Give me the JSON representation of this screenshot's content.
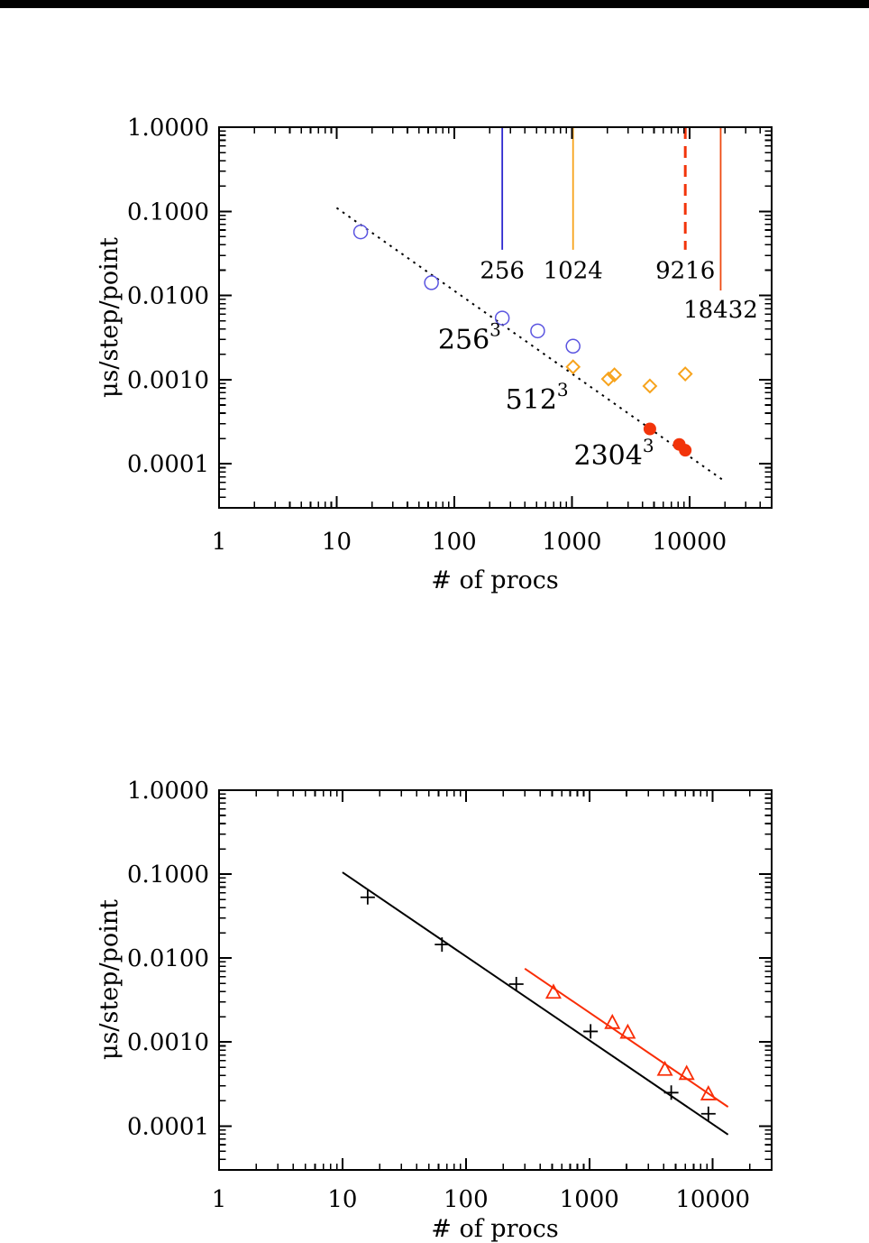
{
  "page": {
    "background": "#ffffff",
    "top_bar_color": "#000000"
  },
  "chart_data": [
    {
      "type": "scatter",
      "scale": "log-log",
      "xlabel": "# of procs",
      "ylabel": "μs/step/point",
      "xlim": [
        1,
        50000
      ],
      "ylim": [
        3e-05,
        1.0
      ],
      "grid": false,
      "legend_position": "none",
      "x_tick_values": [
        1,
        10,
        100,
        1000,
        10000
      ],
      "x_tick_labels": [
        "1",
        "10",
        "100",
        "1000",
        "10000"
      ],
      "y_tick_values": [
        1.0,
        0.1,
        0.01,
        0.001,
        0.0001
      ],
      "y_tick_labels": [
        "1.0000",
        "0.1000",
        "0.0100",
        "0.0010",
        "0.0001"
      ],
      "series": [
        {
          "name": "256^3",
          "marker": "open-circle",
          "color": "#5a54e0",
          "points": [
            [
              16,
              0.057
            ],
            [
              64,
              0.0142
            ],
            [
              256,
              0.0054
            ],
            [
              512,
              0.0038
            ],
            [
              1024,
              0.0025
            ]
          ]
        },
        {
          "name": "512^3",
          "marker": "open-diamond",
          "color": "#f7a31c",
          "points": [
            [
              1024,
              0.00142
            ],
            [
              2048,
              0.00102
            ],
            [
              2304,
              0.00114
            ],
            [
              4608,
              0.00084
            ],
            [
              9216,
              0.00117
            ]
          ]
        },
        {
          "name": "2304^3",
          "marker": "filled-circle",
          "color": "#f2340a",
          "points": [
            [
              4608,
              0.00026
            ],
            [
              8192,
              0.00017
            ],
            [
              9216,
              0.000145
            ]
          ]
        }
      ],
      "lines": [
        {
          "name": "ideal-scaling",
          "style": "dotted",
          "color": "#000000",
          "from": [
            10,
            0.11
          ],
          "to": [
            19000,
            6.5e-05
          ]
        }
      ],
      "vlines": [
        {
          "x": 256,
          "label": "256",
          "color": "#2e28cf",
          "style": "solid",
          "y_top": 1.0,
          "y_bottom": 0.035,
          "label_y": 0.02
        },
        {
          "x": 1024,
          "label": "1024",
          "color": "#f7a31c",
          "style": "solid",
          "y_top": 1.0,
          "y_bottom": 0.035,
          "label_y": 0.02
        },
        {
          "x": 9216,
          "label": "9216",
          "color": "#f2340a",
          "style": "dashed",
          "y_top": 1.0,
          "y_bottom": 0.035,
          "label_y": 0.02
        },
        {
          "x": 18432,
          "label": "18432",
          "color": "#ee4a12",
          "style": "solid",
          "y_top": 1.0,
          "y_bottom": 0.0115,
          "label_y": 0.0068
        }
      ],
      "annotations": [
        {
          "text": "256",
          "sup": "3",
          "color": "#3a33d6",
          "x": 135,
          "y": 0.003
        },
        {
          "text": "512",
          "sup": "3",
          "color": "#f7a31c",
          "x": 505,
          "y": 0.00058
        },
        {
          "text": "2304",
          "sup": "3",
          "color": "#f2340a",
          "x": 2280,
          "y": 0.000125
        }
      ]
    },
    {
      "type": "scatter",
      "scale": "log-log",
      "xlabel": "# of procs",
      "ylabel": "μs/step/point",
      "xlim": [
        1,
        30000
      ],
      "ylim": [
        3e-05,
        1.0
      ],
      "grid": false,
      "legend_position": "none",
      "x_tick_values": [
        1,
        10,
        100,
        1000,
        10000
      ],
      "x_tick_labels": [
        "1",
        "10",
        "100",
        "1000",
        "10000"
      ],
      "y_tick_values": [
        1.0,
        0.1,
        0.01,
        0.001,
        0.0001
      ],
      "y_tick_labels": [
        "1.0000",
        "0.1000",
        "0.0100",
        "0.0010",
        "0.0001"
      ],
      "series": [
        {
          "name": "plus-markers",
          "marker": "plus",
          "color": "#000000",
          "points": [
            [
              16,
              0.053
            ],
            [
              64,
              0.0145
            ],
            [
              256,
              0.0049
            ],
            [
              1024,
              0.00134
            ],
            [
              4608,
              0.00025
            ],
            [
              9216,
              0.00014
            ]
          ]
        },
        {
          "name": "triangle-markers",
          "marker": "open-triangle",
          "color": "#f92d06",
          "points": [
            [
              512,
              0.0039
            ],
            [
              1536,
              0.0017
            ],
            [
              2048,
              0.0013
            ],
            [
              4096,
              0.00047
            ],
            [
              6144,
              0.00042
            ],
            [
              9216,
              0.00024
            ]
          ]
        }
      ],
      "lines": [
        {
          "name": "black-fit-line",
          "style": "solid",
          "color": "#000000",
          "from": [
            10,
            0.105
          ],
          "to": [
            13300,
            7.9e-05
          ]
        },
        {
          "name": "red-fit-line",
          "style": "solid",
          "color": "#f92d06",
          "from": [
            300,
            0.0075
          ],
          "to": [
            13300,
            0.000169
          ]
        }
      ],
      "vlines": [],
      "annotations": []
    }
  ]
}
